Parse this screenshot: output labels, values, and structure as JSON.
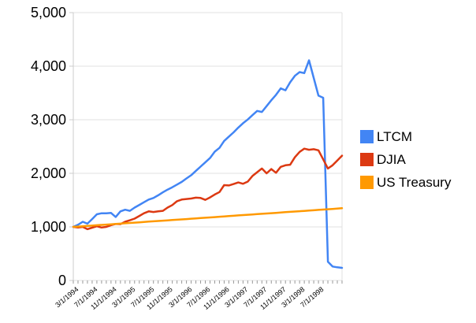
{
  "chart_data": {
    "type": "line",
    "title": "",
    "xlabel": "",
    "ylabel": "",
    "ylim": [
      0,
      5000
    ],
    "y_tick_labels": [
      "0",
      "1,000",
      "2,000",
      "3,000",
      "4,000",
      "5,000"
    ],
    "y_tick_values": [
      0,
      1000,
      2000,
      3000,
      4000,
      5000
    ],
    "x_tick_labels": [
      "3/1/1994",
      "7/1/1994",
      "11/1/1994",
      "3/1/1995",
      "7/1/1995",
      "11/1/1995",
      "3/1/1996",
      "7/1/1996",
      "11/1/1996",
      "3/1/1997",
      "7/1/1997",
      "11/1/1997",
      "3/1/1998",
      "7/1/1998"
    ],
    "x_label_every_n_points": 4,
    "points_total": 58,
    "grid": true,
    "legend_position": "right",
    "axis_color": "#cccccc",
    "grid_color": "#e0e0e0",
    "tick_color": "#999999",
    "series": [
      {
        "name": "LTCM",
        "color": "#4285F4",
        "values": [
          1000,
          1040,
          1095,
          1060,
          1145,
          1235,
          1255,
          1255,
          1260,
          1185,
          1290,
          1320,
          1300,
          1360,
          1410,
          1460,
          1510,
          1540,
          1590,
          1645,
          1695,
          1740,
          1790,
          1840,
          1905,
          1965,
          2045,
          2125,
          2205,
          2285,
          2405,
          2475,
          2605,
          2685,
          2765,
          2855,
          2935,
          3005,
          3085,
          3165,
          3145,
          3255,
          3365,
          3465,
          3585,
          3550,
          3700,
          3820,
          3890,
          3870,
          4110,
          3780,
          3450,
          3410,
          350,
          260,
          245,
          235
        ]
      },
      {
        "name": "DJIA",
        "color": "#DC3912",
        "values": [
          1000,
          990,
          1000,
          958,
          985,
          1012,
          988,
          1000,
          1032,
          1055,
          1052,
          1095,
          1124,
          1155,
          1205,
          1254,
          1290,
          1278,
          1290,
          1300,
          1360,
          1407,
          1480,
          1510,
          1520,
          1530,
          1545,
          1540,
          1505,
          1550,
          1605,
          1650,
          1780,
          1774,
          1800,
          1830,
          1805,
          1845,
          1950,
          2020,
          2090,
          2000,
          2080,
          2010,
          2120,
          2150,
          2160,
          2300,
          2400,
          2460,
          2440,
          2450,
          2430,
          2260,
          2090,
          2150,
          2240,
          2330
        ]
      },
      {
        "name": "US Treasury",
        "color": "#FF9900",
        "values": [
          1000,
          1006,
          1012,
          1018,
          1024,
          1031,
          1037,
          1043,
          1049,
          1055,
          1061,
          1067,
          1073,
          1079,
          1085,
          1092,
          1098,
          1104,
          1110,
          1116,
          1122,
          1128,
          1134,
          1140,
          1146,
          1153,
          1159,
          1165,
          1171,
          1177,
          1183,
          1189,
          1195,
          1201,
          1207,
          1214,
          1220,
          1226,
          1232,
          1238,
          1244,
          1250,
          1256,
          1262,
          1268,
          1275,
          1281,
          1287,
          1293,
          1299,
          1305,
          1311,
          1317,
          1323,
          1329,
          1336,
          1342,
          1348
        ]
      }
    ]
  }
}
